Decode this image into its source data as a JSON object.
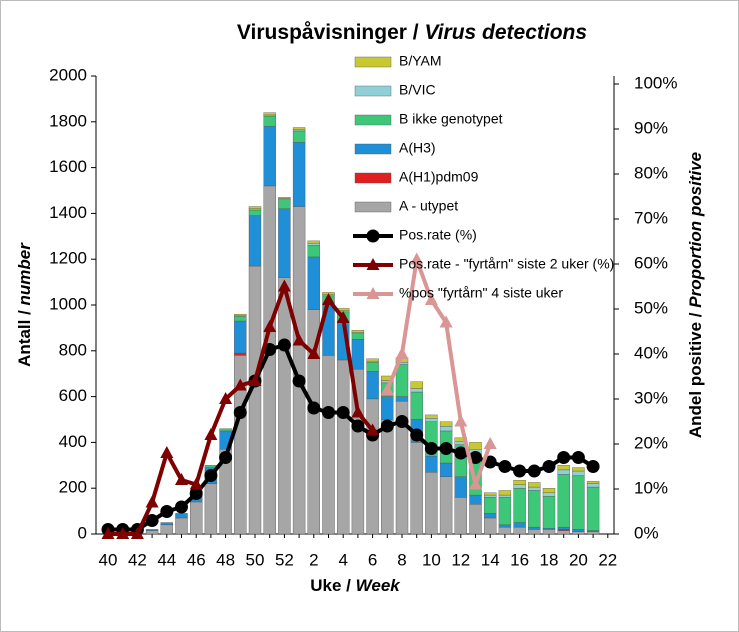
{
  "chart_data": {
    "type": "bar",
    "stacked": true,
    "title_parts": [
      "Viruspåvisninger /",
      "Virus detections"
    ],
    "xlabel_parts": [
      "Uke /",
      "Week"
    ],
    "ylabel_parts": [
      "Antall /",
      "number"
    ],
    "y2label_parts": [
      "Andel positive /",
      "Proportion positive"
    ],
    "categories": [
      "40",
      null,
      "42",
      null,
      "44",
      null,
      "46",
      null,
      "48",
      null,
      "50",
      null,
      "52",
      null,
      "2",
      null,
      "4",
      null,
      "6",
      null,
      "8",
      null,
      "10",
      null,
      "12",
      null,
      "14",
      null,
      "16",
      null,
      "18",
      null,
      "20",
      null,
      "22"
    ],
    "ylim": [
      0,
      2000
    ],
    "yticks": [
      0,
      200,
      400,
      600,
      800,
      1000,
      1200,
      1400,
      1600,
      1800,
      2000
    ],
    "y2lim": [
      0,
      100
    ],
    "y2ticks": [
      {
        "value": 0,
        "label": "0%"
      },
      {
        "value": 10,
        "label": "10%"
      },
      {
        "value": 20,
        "label": "20%"
      },
      {
        "value": 30,
        "label": "30%"
      },
      {
        "value": 40,
        "label": "40%"
      },
      {
        "value": 50,
        "label": "50%"
      },
      {
        "value": 60,
        "label": "60%"
      },
      {
        "value": 70,
        "label": "70%"
      },
      {
        "value": 80,
        "label": "80%"
      },
      {
        "value": 90,
        "label": "90%"
      },
      {
        "value": 100,
        "label": "100%"
      }
    ],
    "series": [
      {
        "name": "A - utypet",
        "color": "#a6a6a6",
        "values": [
          0,
          0,
          5,
          15,
          40,
          70,
          140,
          220,
          370,
          780,
          1170,
          1520,
          1120,
          1430,
          980,
          780,
          760,
          720,
          590,
          500,
          580,
          400,
          270,
          250,
          160,
          130,
          70,
          30,
          30,
          20,
          20,
          15,
          10,
          10,
          null
        ]
      },
      {
        "name": "A(H1)pdm09",
        "color": "#e02020",
        "values": [
          0,
          0,
          0,
          0,
          0,
          0,
          0,
          0,
          0,
          10,
          0,
          0,
          0,
          0,
          0,
          0,
          0,
          0,
          0,
          0,
          0,
          0,
          0,
          0,
          0,
          0,
          0,
          0,
          0,
          0,
          0,
          5,
          0,
          0,
          null
        ]
      },
      {
        "name": "A(H3)",
        "color": "#1f8fd8",
        "values": [
          0,
          0,
          0,
          5,
          10,
          20,
          50,
          70,
          80,
          140,
          220,
          260,
          300,
          280,
          230,
          230,
          170,
          130,
          120,
          100,
          20,
          100,
          70,
          60,
          90,
          40,
          20,
          10,
          20,
          10,
          5,
          10,
          10,
          5,
          null
        ]
      },
      {
        "name": "B ikke genotypet",
        "color": "#3cc878",
        "values": [
          0,
          0,
          0,
          0,
          0,
          0,
          0,
          10,
          10,
          20,
          25,
          45,
          40,
          50,
          50,
          30,
          40,
          25,
          40,
          60,
          140,
          120,
          150,
          140,
          140,
          180,
          70,
          120,
          150,
          160,
          140,
          230,
          235,
          190,
          null
        ]
      },
      {
        "name": "B/VIC",
        "color": "#8fd0d8",
        "values": [
          0,
          0,
          0,
          0,
          0,
          0,
          0,
          0,
          0,
          5,
          5,
          5,
          5,
          5,
          10,
          5,
          5,
          5,
          5,
          10,
          10,
          15,
          15,
          20,
          15,
          20,
          10,
          10,
          15,
          15,
          15,
          20,
          20,
          15,
          null
        ]
      },
      {
        "name": "B/YAM",
        "color": "#c8c830",
        "values": [
          0,
          0,
          0,
          0,
          0,
          0,
          0,
          0,
          0,
          5,
          10,
          10,
          5,
          10,
          10,
          10,
          10,
          10,
          10,
          20,
          20,
          30,
          15,
          20,
          15,
          30,
          10,
          20,
          20,
          20,
          20,
          20,
          15,
          10,
          null
        ]
      },
      {
        "name": "Pos.rate (%)",
        "type": "line",
        "axis": "y2",
        "marker": "circle",
        "color": "#000000",
        "values": [
          1,
          1,
          1,
          3,
          5,
          6,
          9,
          13,
          17,
          27,
          34,
          41,
          42,
          34,
          28,
          27,
          27,
          24,
          22,
          24,
          25,
          22,
          19,
          19,
          18,
          17,
          16,
          15,
          14,
          14,
          15,
          17,
          17,
          15,
          null
        ]
      },
      {
        "name": "Pos.rate - \"fyrtårn\" siste 2 uker (%)",
        "type": "line",
        "axis": "y2",
        "marker": "triangle",
        "color": "#7f0000",
        "values": [
          0,
          0,
          0,
          7,
          18,
          12,
          11,
          22,
          30,
          33,
          34,
          46,
          55,
          43,
          40,
          52,
          48,
          27,
          23,
          null,
          null,
          null,
          null,
          null,
          null,
          null,
          null,
          null,
          null,
          null,
          null,
          null,
          null,
          null,
          null
        ]
      },
      {
        "name": "%pos \"fyrtårn\" 4 siste uker",
        "type": "line",
        "axis": "y2",
        "marker": "triangle",
        "color": "#d99694",
        "values": [
          null,
          null,
          null,
          null,
          null,
          null,
          null,
          null,
          null,
          null,
          null,
          null,
          null,
          null,
          null,
          null,
          null,
          null,
          null,
          32,
          40,
          61,
          52,
          47,
          25,
          11,
          20,
          null,
          null,
          null,
          null,
          null,
          null,
          null,
          null
        ]
      }
    ]
  }
}
